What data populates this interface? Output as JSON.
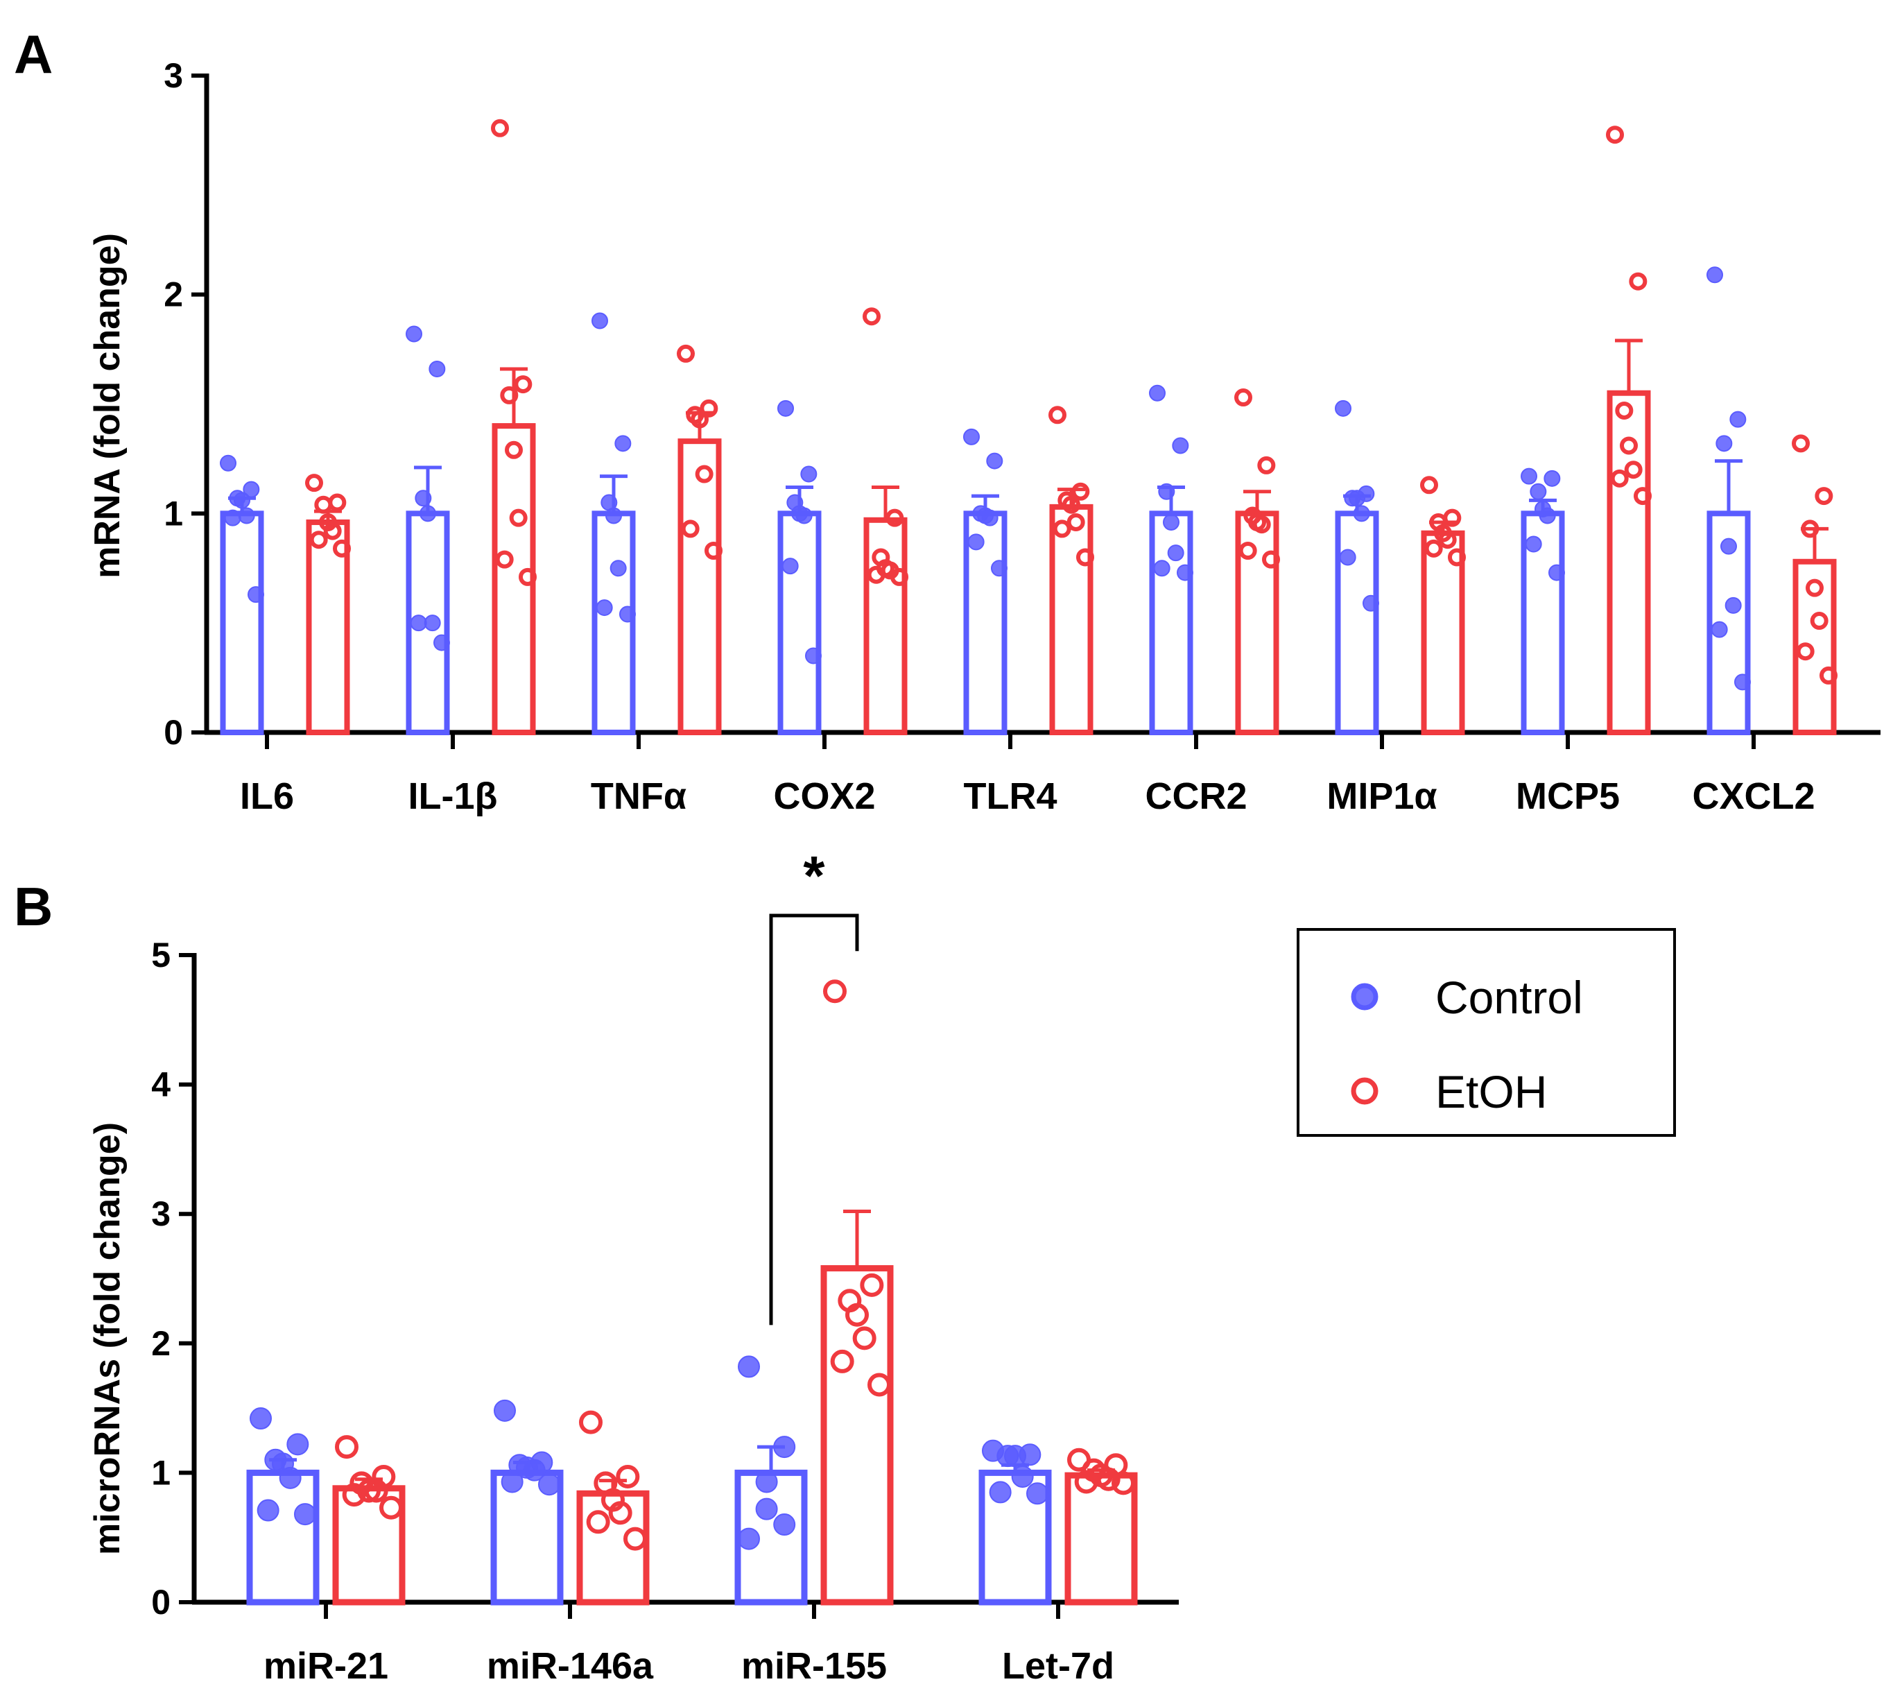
{
  "colors": {
    "control": "#5a5cff",
    "etoh": "#f03a3f",
    "axis": "#000000"
  },
  "legend": {
    "items": [
      {
        "label": "Control",
        "color_key": "control"
      },
      {
        "label": "EtOH",
        "color_key": "etoh"
      }
    ]
  },
  "chart_data": [
    {
      "panel": "A",
      "type": "bar",
      "ylabel": "mRNA (fold change)",
      "ylim": [
        0,
        3
      ],
      "yticks": [
        0,
        1,
        2,
        3
      ],
      "ytick_labels": [
        "0",
        "1",
        "2",
        "3"
      ],
      "categories": [
        "IL6",
        "IL-1β",
        "TNFα",
        "COX2",
        "TLR4",
        "CCR2",
        "MIP1α",
        "MCP5",
        "CXCL2"
      ],
      "series": [
        {
          "name": "Control",
          "values": [
            1.0,
            1.0,
            1.0,
            1.0,
            1.0,
            1.0,
            1.0,
            1.0,
            1.0
          ],
          "sem": [
            0.07,
            0.21,
            0.17,
            0.12,
            0.08,
            0.12,
            0.08,
            0.06,
            0.24
          ],
          "points": [
            [
              1.23,
              1.11,
              1.07,
              1.06,
              0.99,
              0.98,
              0.63
            ],
            [
              1.82,
              1.66,
              1.07,
              1.0,
              0.5,
              0.5,
              0.41
            ],
            [
              1.88,
              1.32,
              1.05,
              0.99,
              0.75,
              0.57,
              0.54
            ],
            [
              1.48,
              1.18,
              1.05,
              1.0,
              0.99,
              0.76,
              0.35
            ],
            [
              1.35,
              1.24,
              1.0,
              0.99,
              0.98,
              0.87,
              0.75
            ],
            [
              1.55,
              1.31,
              1.1,
              0.96,
              0.82,
              0.75,
              0.73
            ],
            [
              1.48,
              1.09,
              1.07,
              1.07,
              1.0,
              0.8,
              0.59
            ],
            [
              1.17,
              1.16,
              1.1,
              1.02,
              0.99,
              0.86,
              0.73
            ],
            [
              2.09,
              1.43,
              1.32,
              0.85,
              0.58,
              0.47,
              0.23
            ]
          ]
        },
        {
          "name": "EtOH",
          "values": [
            0.96,
            1.4,
            1.33,
            0.97,
            1.03,
            1.0,
            0.91,
            1.55,
            0.78
          ],
          "sem": [
            0.05,
            0.26,
            0.13,
            0.15,
            0.08,
            0.1,
            0.05,
            0.24,
            0.15
          ],
          "points": [
            [
              1.14,
              1.05,
              1.04,
              0.96,
              0.92,
              0.88,
              0.84
            ],
            [
              2.76,
              1.59,
              1.54,
              1.29,
              0.98,
              0.79,
              0.71
            ],
            [
              1.73,
              1.48,
              1.45,
              1.43,
              1.18,
              0.93,
              0.83
            ],
            [
              1.9,
              0.98,
              0.8,
              0.75,
              0.74,
              0.72,
              0.71
            ],
            [
              1.45,
              1.1,
              1.06,
              1.04,
              0.96,
              0.93,
              0.8
            ],
            [
              1.53,
              1.22,
              0.99,
              0.96,
              0.95,
              0.83,
              0.79
            ],
            [
              1.13,
              0.98,
              0.96,
              0.91,
              0.88,
              0.84,
              0.8
            ],
            [
              2.73,
              2.06,
              1.47,
              1.31,
              1.2,
              1.16,
              1.08
            ],
            [
              1.32,
              1.08,
              0.93,
              0.66,
              0.51,
              0.37,
              0.26
            ]
          ]
        }
      ]
    },
    {
      "panel": "B",
      "type": "bar",
      "ylabel": "microRNAs (fold change)",
      "ylim": [
        0,
        5
      ],
      "yticks": [
        0,
        1,
        2,
        3,
        4,
        5
      ],
      "ytick_labels": [
        "0",
        "1",
        "2",
        "3",
        "4",
        "5"
      ],
      "categories": [
        "miR-21",
        "miR-146a",
        "miR-155",
        "Let-7d"
      ],
      "series": [
        {
          "name": "Control",
          "values": [
            1.0,
            1.0,
            1.0,
            1.0
          ],
          "sem": [
            0.1,
            0.08,
            0.2,
            0.06
          ],
          "points": [
            [
              1.42,
              1.22,
              1.1,
              1.07,
              0.96,
              0.71,
              0.68
            ],
            [
              1.48,
              1.08,
              1.06,
              1.04,
              1.02,
              0.93,
              0.91
            ],
            [
              1.82,
              1.2,
              0.93,
              0.72,
              0.6,
              0.49
            ],
            [
              1.17,
              1.14,
              1.13,
              1.13,
              0.97,
              0.85,
              0.84
            ]
          ]
        },
        {
          "name": "EtOH",
          "values": [
            0.88,
            0.84,
            2.58,
            0.98
          ],
          "sem": [
            0.07,
            0.1,
            0.44,
            0.04
          ],
          "points": [
            [
              1.2,
              0.97,
              0.92,
              0.86,
              0.86,
              0.83,
              0.73
            ],
            [
              1.39,
              0.97,
              0.92,
              0.79,
              0.69,
              0.62,
              0.49
            ],
            [
              4.72,
              2.45,
              2.33,
              2.22,
              2.04,
              1.86,
              1.68
            ],
            [
              1.1,
              1.06,
              1.02,
              0.98,
              0.95,
              0.93,
              0.92
            ]
          ]
        }
      ],
      "annotations": [
        {
          "type": "significance",
          "text": "*",
          "category": "miR-155",
          "between": [
            "Control",
            "EtOH"
          ]
        }
      ]
    }
  ]
}
